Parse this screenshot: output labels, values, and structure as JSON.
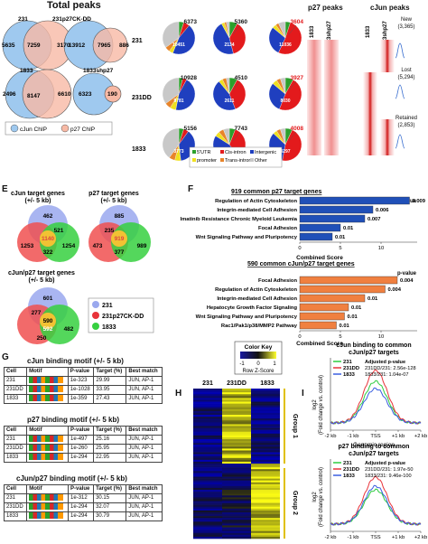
{
  "panelA": {
    "title": "Total peaks",
    "v1": {
      "left": "231",
      "right": "231p27CK-DD",
      "a": "5635",
      "ab": "7259",
      "b": "3170"
    },
    "v2": {
      "a": "13912",
      "ab": "7965",
      "b": "886"
    },
    "v3": {
      "left": "1833",
      "right": "1833shp27",
      "a": "2496",
      "ab": "8147",
      "b": "6610"
    },
    "v4": {
      "a": "6323",
      "ab": "190"
    },
    "legend": [
      "cJun ChIP",
      "p27 ChIP"
    ]
  },
  "panelB": {
    "rows": [
      "231",
      "231DD",
      "1833"
    ],
    "totals": [
      "6373",
      "5360",
      "3604",
      "10928",
      "4510",
      "3927",
      "5156",
      "7743",
      "4008"
    ],
    "inner": [
      "10451",
      "2134",
      "11036",
      "9781",
      "2611",
      "8030",
      "3773",
      "4267",
      "4297"
    ],
    "legend": [
      "5'UTR",
      "Cis-intron",
      "Intergenic",
      "promoter",
      "Trans-intron",
      "Other"
    ],
    "colors": [
      "#2ca02c",
      "#e31a1c",
      "#1f3fbf",
      "#f0e020",
      "#e8842a",
      "#c8c8c8"
    ]
  },
  "panelC": {
    "title1": "p27 peaks",
    "title2": "cJun peaks",
    "col1": "1833",
    "col2": "1833shp27",
    "col3": "1833",
    "col4": "1833shp27",
    "labels": [
      "New",
      "(3,365)",
      "Lost",
      "(5,294)",
      "Retained",
      "(2,853)"
    ]
  },
  "panelE": {
    "letter": "E",
    "t1": [
      "cJun target genes",
      "(+/- 5 kb)"
    ],
    "v1": [
      "462",
      "521",
      "1253",
      "1140",
      "322",
      "1254"
    ],
    "t2": [
      "p27 target genes",
      "(+/- 5 kb)"
    ],
    "v2": [
      "885",
      "235",
      "473",
      "919",
      "377",
      "989"
    ],
    "t3": [
      "cJun/p27 target genes",
      "(+/- 5 kb)"
    ],
    "v3": [
      "601",
      "277",
      "590",
      "592",
      "250",
      "482"
    ],
    "legend": [
      "231",
      "231p27CK-DD",
      "1833"
    ]
  },
  "panelF": {
    "letter": "F",
    "c1": {
      "title": "919 common p27 target genes",
      "pvh": "p-value",
      "xlabel": "Combined Score",
      "ticks": [
        "0",
        "5",
        "10"
      ],
      "terms": [
        "Regulation of Actin Cytoskeleton",
        "Integrin-mediated Cell Adhesion",
        "Imatinib Resistance Chronic Myeloid Leukemia",
        "Focal Adhesion",
        "Wnt Signaling Pathway and Pluripotency"
      ],
      "scores": [
        13.5,
        9,
        8,
        5,
        4
      ],
      "pvals": [
        "0.009",
        "0.006",
        "0.007",
        "0.01",
        "0.01"
      ]
    },
    "c2": {
      "title": "590 common cJun/p27 target genes",
      "pvh": "p-value",
      "xlabel": "Combined Score",
      "ticks": [
        "0",
        "5",
        "10"
      ],
      "terms": [
        "Focal Adhesion",
        "Regulation of Actin Cytoskeleton",
        "Integrin-mediated Cell Adhesion",
        "Hepatocyte Growth Factor Signaling",
        "Wnt Signaling Pathway and Pluripotency",
        "Rac1/Pak1/p38/MMP2 Pathway"
      ],
      "scores": [
        12,
        10.5,
        8,
        6,
        5.5,
        4.5
      ],
      "pvals": [
        "0.004",
        "0.004",
        "0.01",
        "0.01",
        "0.01",
        "0.01"
      ]
    }
  },
  "panelG": {
    "letter": "G",
    "tables": [
      {
        "title": "cJun binding motif (+/- 5 kb)",
        "rows": [
          [
            "231",
            "1e-323",
            "29.99",
            "JUN, AP-1"
          ],
          [
            "231DD",
            "1e-1028",
            "33.95",
            "JUN, AP-1"
          ],
          [
            "1833",
            "1e-359",
            "27.43",
            "JUN, AP-1"
          ]
        ]
      },
      {
        "title": "p27 binding motif (+/- 5 kb)",
        "rows": [
          [
            "231",
            "1e-497",
            "25.16",
            "JUN, AP-1"
          ],
          [
            "231DD",
            "1e-260",
            "25.95",
            "JUN, AP-1"
          ],
          [
            "1833",
            "1e-294",
            "22.95",
            "JUN, AP-1"
          ]
        ]
      },
      {
        "title": "cJun/p27 binding motif (+/- 5 kb)",
        "rows": [
          [
            "231",
            "1e-312",
            "30.15",
            "JUN, AP-1"
          ],
          [
            "231DD",
            "1e-294",
            "32.07",
            "JUN, AP-1"
          ],
          [
            "1833",
            "1e-294",
            "30.79",
            "JUN, AP-1"
          ]
        ]
      }
    ],
    "headers": [
      "Cell",
      "Motif",
      "P-value",
      "Target (%)",
      "Best match"
    ]
  },
  "panelH": {
    "letter": "H",
    "key": "Color Key",
    "ticks": [
      "-1",
      "0",
      "1"
    ],
    "zlabel": "Row Z-Score",
    "cols": [
      "231",
      "231DD",
      "1833"
    ],
    "g1": "Group 1",
    "g2": "Group 2"
  },
  "panelI": {
    "letter": "I",
    "c1": {
      "title": [
        "cJun binding to common",
        "cJun/p27 targets"
      ],
      "legend": [
        "231",
        "231DD",
        "1833"
      ],
      "pv": [
        "Adjusted p-value",
        "231DD/231: 2.56e-128",
        "1833/231: 1.04e-07"
      ],
      "xticks": [
        "-2 kb",
        "-1 kb",
        "TSS",
        "+1 kb",
        "+2 kb"
      ],
      "xlabel": "Genomic region",
      "ylabel": [
        "log2",
        "(Fold change vs. control)"
      ]
    },
    "c2": {
      "title": [
        "p27 binding to common",
        "cJun/p27 targets"
      ],
      "legend": [
        "231",
        "231DD",
        "1833"
      ],
      "pv": [
        "Adjusted p-value",
        "231DD/231: 1.97e-50",
        "1833/231: 9.46e-100"
      ],
      "xticks": [
        "-2 kb",
        "-1 kb",
        "TSS",
        "+1 kb",
        "+2 kb"
      ],
      "ylabel": [
        "log2",
        "(Fold change vs. control)"
      ]
    },
    "colors": [
      "#2ecc40",
      "#e8333a",
      "#3a5fe0"
    ]
  }
}
